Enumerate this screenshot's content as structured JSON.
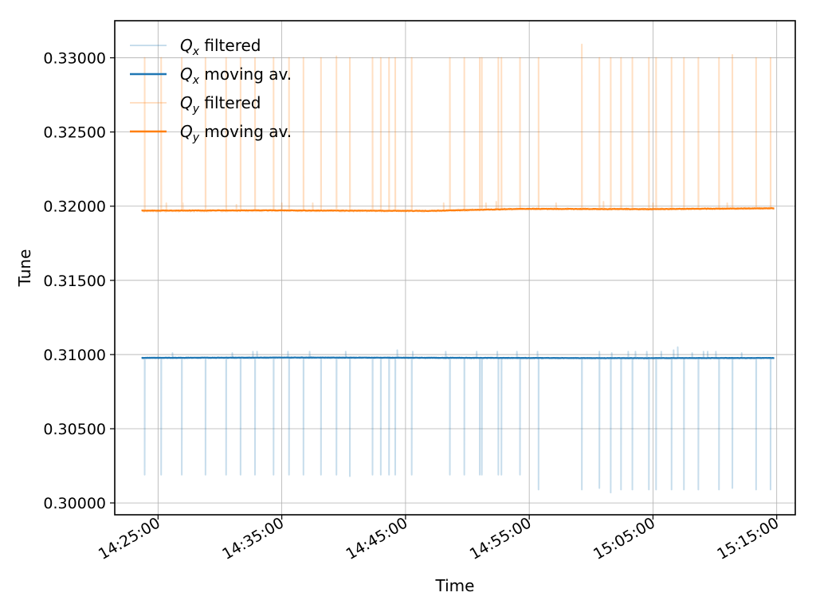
{
  "chart_data": {
    "type": "line",
    "title": "",
    "xlabel": "Time",
    "ylabel": "Tune",
    "xlim": [
      "14:21:30",
      "15:16:30"
    ],
    "ylim": [
      0.2992,
      0.3325
    ],
    "x_ticks": [
      "14:25:00",
      "14:35:00",
      "14:45:00",
      "14:55:00",
      "15:05:00",
      "15:15:00"
    ],
    "y_ticks": [
      "0.30000",
      "0.30500",
      "0.31000",
      "0.31500",
      "0.32000",
      "0.32500",
      "0.33000"
    ],
    "grid": true,
    "legend_position": "top-left",
    "x_start": "14:23:40",
    "x_end": "15:14:50",
    "series": [
      {
        "name": "Q_x filtered",
        "legend_main": "Q",
        "legend_sub": "x",
        "legend_rest": " filtered",
        "color": "#1f77b4",
        "opacity": 0.25,
        "baseline": [
          [
            0,
            0.30975
          ],
          [
            25,
            0.30978
          ],
          [
            50,
            0.30976
          ],
          [
            75,
            0.30975
          ],
          [
            100,
            0.30976
          ]
        ],
        "noise": 4e-05,
        "spikes_down": [
          [
            "14:23:55",
            0.3019
          ],
          [
            "14:25:15",
            0.3019
          ],
          [
            "14:26:55",
            0.3019
          ],
          [
            "14:28:50",
            0.3019
          ],
          [
            "14:30:30",
            0.3019
          ],
          [
            "14:31:40",
            0.3019
          ],
          [
            "14:32:50",
            0.3019
          ],
          [
            "14:34:20",
            0.3019
          ],
          [
            "14:35:35",
            0.3019
          ],
          [
            "14:36:45",
            0.3019
          ],
          [
            "14:38:10",
            0.3019
          ],
          [
            "14:39:25",
            0.3019
          ],
          [
            "14:40:30",
            0.3018
          ],
          [
            "14:42:20",
            0.3019
          ],
          [
            "14:43:00",
            0.3019
          ],
          [
            "14:43:40",
            0.3019
          ],
          [
            "14:44:10",
            0.3019
          ],
          [
            "14:45:30",
            0.3019
          ],
          [
            "14:48:35",
            0.3019
          ],
          [
            "14:49:45",
            0.3019
          ],
          [
            "14:51:00",
            0.3019
          ],
          [
            "14:51:10",
            0.3019
          ],
          [
            "14:52:30",
            0.3019
          ],
          [
            "14:52:45",
            0.3019
          ],
          [
            "14:54:15",
            0.3019
          ],
          [
            "14:55:45",
            0.3009
          ],
          [
            "14:59:15",
            0.3009
          ],
          [
            "15:00:40",
            0.301
          ],
          [
            "15:01:35",
            0.3007
          ],
          [
            "15:02:25",
            0.3009
          ],
          [
            "15:03:20",
            0.3009
          ],
          [
            "15:04:40",
            0.3009
          ],
          [
            "15:05:15",
            0.3009
          ],
          [
            "15:06:30",
            0.3009
          ],
          [
            "15:07:30",
            0.3009
          ],
          [
            "15:08:40",
            0.3009
          ],
          [
            "15:10:20",
            0.3009
          ],
          [
            "15:11:25",
            0.301
          ],
          [
            "15:13:20",
            0.3009
          ],
          [
            "15:14:30",
            0.3009
          ]
        ],
        "spikes_up": [
          [
            "14:26:10",
            0.3101
          ],
          [
            "14:31:00",
            0.3101
          ],
          [
            "14:32:40",
            0.3102
          ],
          [
            "14:33:00",
            0.3102
          ],
          [
            "14:35:30",
            0.3102
          ],
          [
            "14:37:15",
            0.3102
          ],
          [
            "14:40:10",
            0.3102
          ],
          [
            "14:44:20",
            0.3103
          ],
          [
            "14:45:35",
            0.3102
          ],
          [
            "14:48:15",
            0.3102
          ],
          [
            "14:50:45",
            0.3102
          ],
          [
            "14:52:25",
            0.3102
          ],
          [
            "14:54:00",
            0.3102
          ],
          [
            "14:55:40",
            0.3102
          ],
          [
            "15:00:40",
            0.3102
          ],
          [
            "15:01:40",
            0.3101
          ],
          [
            "15:03:00",
            0.3102
          ],
          [
            "15:03:35",
            0.3102
          ],
          [
            "15:04:30",
            0.3102
          ],
          [
            "15:05:40",
            0.3102
          ],
          [
            "15:06:40",
            0.3103
          ],
          [
            "15:07:00",
            0.3105
          ],
          [
            "15:08:10",
            0.3101
          ],
          [
            "15:09:05",
            0.3102
          ],
          [
            "15:09:25",
            0.3102
          ],
          [
            "15:10:05",
            0.3102
          ],
          [
            "15:12:10",
            0.3101
          ]
        ]
      },
      {
        "name": "Q_x moving av.",
        "legend_main": "Q",
        "legend_sub": "x",
        "legend_rest": " moving av.",
        "color": "#1f77b4",
        "opacity": 1,
        "baseline": [
          [
            0,
            0.30978
          ],
          [
            25,
            0.3098
          ],
          [
            50,
            0.30978
          ],
          [
            75,
            0.30976
          ],
          [
            100,
            0.30977
          ]
        ],
        "noise": 8e-06
      },
      {
        "name": "Q_y filtered",
        "legend_main": "Q",
        "legend_sub": "y",
        "legend_rest": " filtered",
        "color": "#ff7f0e",
        "opacity": 0.25,
        "baseline": [
          [
            0,
            0.31968
          ],
          [
            20,
            0.3197
          ],
          [
            45,
            0.31968
          ],
          [
            60,
            0.31982
          ],
          [
            80,
            0.3198
          ],
          [
            100,
            0.31985
          ]
        ],
        "noise": 6e-05,
        "spikes_up": [
          [
            "14:23:55",
            0.33
          ],
          [
            "14:25:15",
            0.33
          ],
          [
            "14:26:55",
            0.33
          ],
          [
            "14:28:50",
            0.33
          ],
          [
            "14:30:30",
            0.33
          ],
          [
            "14:31:40",
            0.33
          ],
          [
            "14:32:50",
            0.33
          ],
          [
            "14:34:20",
            0.33
          ],
          [
            "14:35:35",
            0.33
          ],
          [
            "14:36:45",
            0.33
          ],
          [
            "14:38:10",
            0.33
          ],
          [
            "14:39:25",
            0.3301
          ],
          [
            "14:40:30",
            0.33
          ],
          [
            "14:42:20",
            0.33
          ],
          [
            "14:43:00",
            0.33
          ],
          [
            "14:43:40",
            0.33
          ],
          [
            "14:44:10",
            0.33
          ],
          [
            "14:45:30",
            0.33
          ],
          [
            "14:48:35",
            0.33
          ],
          [
            "14:49:45",
            0.33
          ],
          [
            "14:51:00",
            0.33
          ],
          [
            "14:51:10",
            0.33
          ],
          [
            "14:52:30",
            0.33
          ],
          [
            "14:52:45",
            0.33
          ],
          [
            "14:54:15",
            0.33
          ],
          [
            "14:55:45",
            0.33
          ],
          [
            "14:59:15",
            0.3309
          ],
          [
            "15:00:40",
            0.33
          ],
          [
            "15:01:35",
            0.33
          ],
          [
            "15:02:25",
            0.33
          ],
          [
            "15:03:20",
            0.33
          ],
          [
            "15:04:40",
            0.33
          ],
          [
            "15:05:15",
            0.33
          ],
          [
            "15:06:30",
            0.33
          ],
          [
            "15:07:30",
            0.33
          ],
          [
            "15:08:40",
            0.33
          ],
          [
            "15:10:20",
            0.33
          ],
          [
            "15:11:25",
            0.3302
          ],
          [
            "15:13:20",
            0.33
          ],
          [
            "15:14:30",
            0.33
          ]
        ],
        "spikes_small": [
          [
            "14:25:40",
            0.3202
          ],
          [
            "14:27:00",
            0.3202
          ],
          [
            "14:31:20",
            0.3201
          ],
          [
            "14:35:00",
            0.3202
          ],
          [
            "14:37:30",
            0.3202
          ],
          [
            "14:43:00",
            0.3201
          ],
          [
            "14:48:05",
            0.3202
          ],
          [
            "14:51:30",
            0.3202
          ],
          [
            "14:52:20",
            0.3203
          ],
          [
            "14:57:10",
            0.3202
          ],
          [
            "15:01:00",
            0.3203
          ],
          [
            "15:05:00",
            0.3202
          ],
          [
            "15:11:00",
            0.3202
          ]
        ]
      },
      {
        "name": "Q_y moving av.",
        "legend_main": "Q",
        "legend_sub": "y",
        "legend_rest": " moving av.",
        "color": "#ff7f0e",
        "opacity": 1,
        "baseline": [
          [
            0,
            0.3197
          ],
          [
            20,
            0.31972
          ],
          [
            45,
            0.31968
          ],
          [
            60,
            0.31982
          ],
          [
            80,
            0.3198
          ],
          [
            100,
            0.31986
          ]
        ],
        "noise": 1.2e-05
      }
    ]
  }
}
